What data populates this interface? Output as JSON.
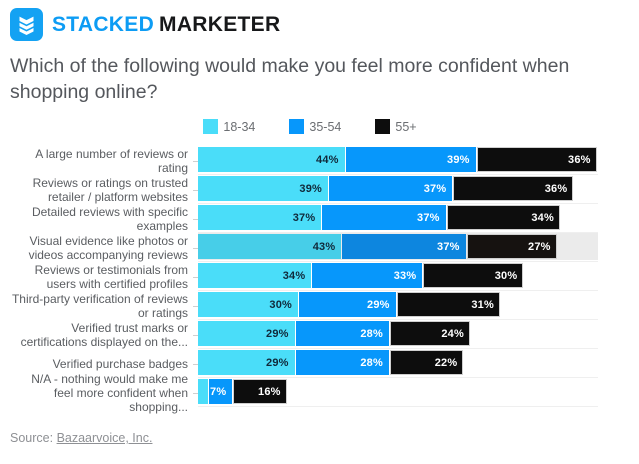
{
  "header": {
    "brand_part1": "STACKED",
    "brand_part2": "MARKETER",
    "logo_color": "#14a2f3",
    "brand_blue": "#0d9cf4"
  },
  "title": "Which of the following would make you feel more confident when shopping online?",
  "source": {
    "prefix": "Source: ",
    "link_text": "Bazaarvoice, Inc."
  },
  "chart_data": {
    "type": "bar",
    "orientation": "horizontal",
    "stacked": true,
    "axis_max_pct": 120,
    "grid": "row-separators",
    "legend_position": "top-center",
    "series": [
      {
        "name": "18-34",
        "color": "#4addf9",
        "muted_color": "#47cee8",
        "label_color": "#10293a"
      },
      {
        "name": "35-54",
        "color": "#0797fb",
        "muted_color": "#0d86df",
        "label_color": "#ffffff"
      },
      {
        "name": "55+",
        "color": "#0d0d0d",
        "muted_color": "#161210",
        "label_color": "#ffffff"
      }
    ],
    "rows": [
      {
        "category": "A large number of reviews or rating",
        "values": [
          44,
          39,
          36
        ],
        "labels": [
          "44%",
          "39%",
          "36%"
        ],
        "highlighted": false
      },
      {
        "category": "Reviews or ratings on trusted retailer / platform websites",
        "values": [
          39,
          37,
          36
        ],
        "labels": [
          "39%",
          "37%",
          "36%"
        ],
        "highlighted": false
      },
      {
        "category": "Detailed reviews with specific examples",
        "values": [
          37,
          37,
          34
        ],
        "labels": [
          "37%",
          "37%",
          "34%"
        ],
        "highlighted": false
      },
      {
        "category": "Visual evidence like photos or videos accompanying reviews",
        "values": [
          43,
          37,
          27
        ],
        "labels": [
          "43%",
          "37%",
          "27%"
        ],
        "highlighted": true,
        "highlight_color": "#ebebeb"
      },
      {
        "category": "Reviews or testimonials from users with certified profiles",
        "values": [
          34,
          33,
          30
        ],
        "labels": [
          "34%",
          "33%",
          "30%"
        ],
        "highlighted": false
      },
      {
        "category": "Third-party verification of reviews or ratings",
        "values": [
          30,
          29,
          31
        ],
        "labels": [
          "30%",
          "29%",
          "31%"
        ],
        "highlighted": false
      },
      {
        "category": "Verified trust marks or certifications displayed on the...",
        "values": [
          29,
          28,
          24
        ],
        "labels": [
          "29%",
          "28%",
          "24%"
        ],
        "highlighted": false
      },
      {
        "category": "Verified purchase badges",
        "values": [
          29,
          28,
          22
        ],
        "labels": [
          "29%",
          "28%",
          "22%"
        ],
        "highlighted": false
      },
      {
        "category": "N/A - nothing would make me feel more confident when shopping...",
        "values": [
          3,
          7,
          16
        ],
        "labels": [
          "",
          "7%",
          "16%"
        ],
        "highlighted": false
      }
    ]
  }
}
